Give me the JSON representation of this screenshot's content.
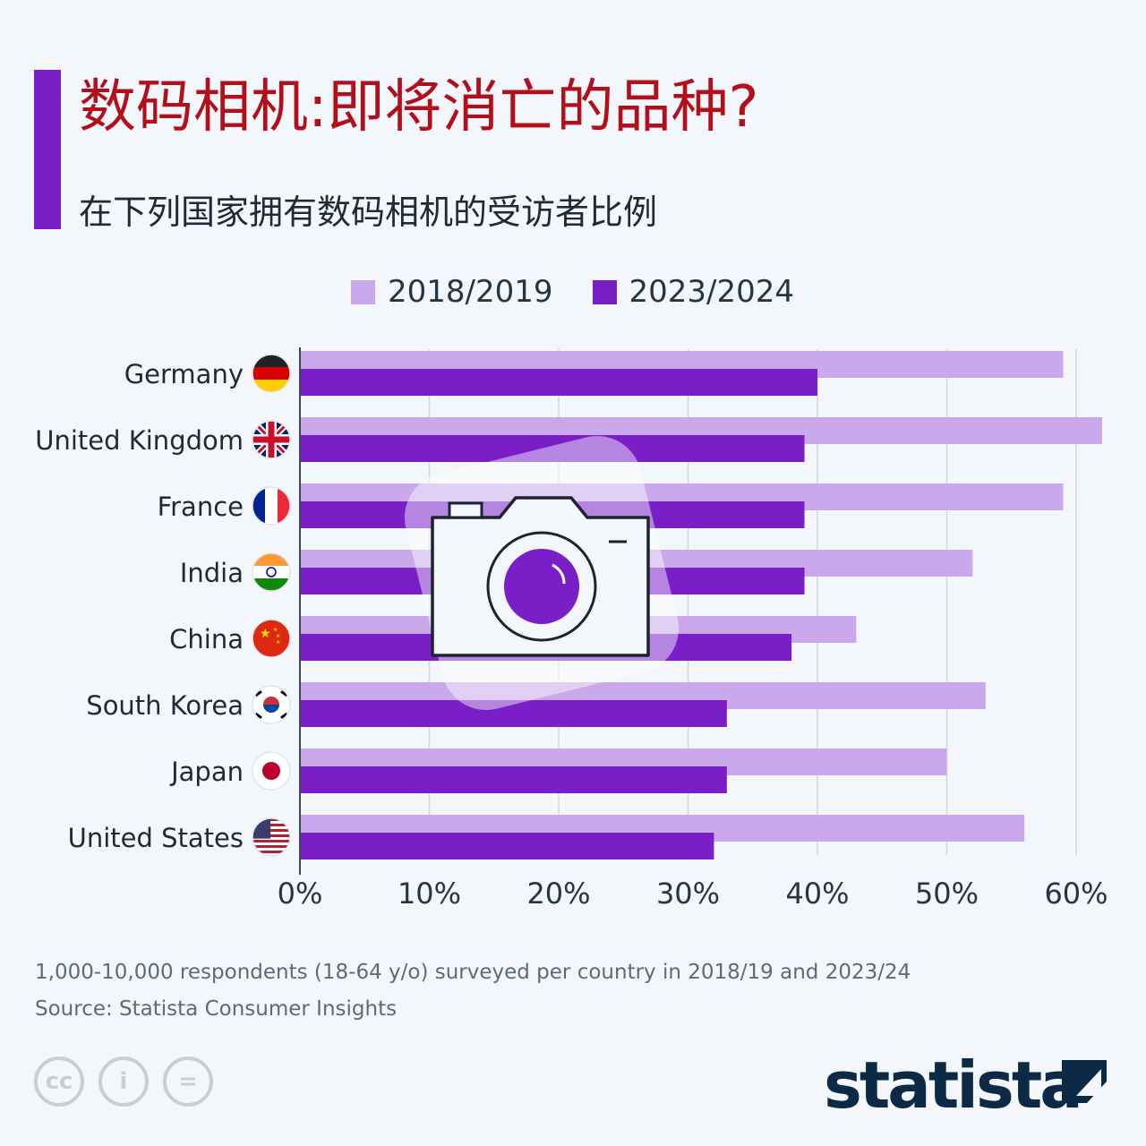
{
  "header": {
    "title": "数码相机:即将消亡的品种?",
    "subtitle": "在下列国家拥有数码相机的受访者比例"
  },
  "legend": [
    {
      "label": "2018/2019",
      "color": "#c9a8ec"
    },
    {
      "label": "2023/2024",
      "color": "#7a1fc8"
    }
  ],
  "chart_data": {
    "type": "bar",
    "orientation": "horizontal",
    "categories": [
      "Germany",
      "United Kingdom",
      "France",
      "India",
      "China",
      "South Korea",
      "Japan",
      "United States"
    ],
    "series": [
      {
        "name": "2018/2019",
        "color": "#c9a8ec",
        "values": [
          59,
          62,
          59,
          52,
          43,
          53,
          50,
          56
        ]
      },
      {
        "name": "2023/2024",
        "color": "#7a1fc8",
        "values": [
          40,
          39,
          39,
          39,
          38,
          33,
          33,
          32
        ]
      }
    ],
    "xlim": [
      0,
      60
    ],
    "xticks": [
      "0%",
      "10%",
      "20%",
      "30%",
      "40%",
      "50%",
      "60%"
    ],
    "unit": "%",
    "grid": true
  },
  "flags": [
    "germany-flag-icon",
    "uk-flag-icon",
    "france-flag-icon",
    "india-flag-icon",
    "china-flag-icon",
    "south-korea-flag-icon",
    "japan-flag-icon",
    "usa-flag-icon"
  ],
  "overlay_icon": "camera-icon",
  "footer": {
    "note": "1,000-10,000 respondents (18-64 y/o) surveyed per country in 2018/19 and 2023/24",
    "source": "Source: Statista Consumer Insights",
    "license_icons": [
      "cc-icon",
      "attribution-icon",
      "no-derivatives-icon"
    ],
    "brand": "statista"
  }
}
